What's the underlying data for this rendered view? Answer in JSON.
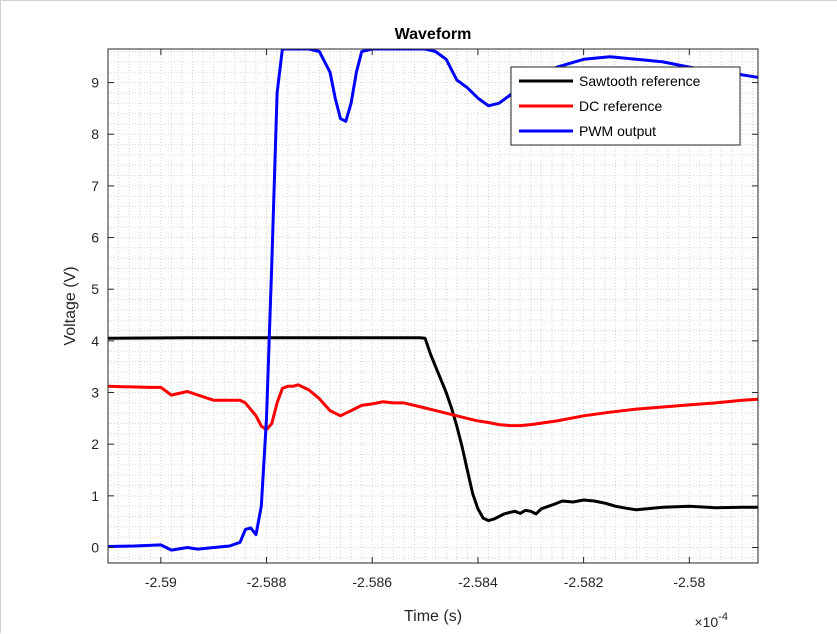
{
  "chart_data": {
    "type": "line",
    "title": "Waveform",
    "xlabel": "Time (s)",
    "ylabel": "Voltage (V)",
    "x_multiplier": "×10",
    "x_multiplier_exp": "-4",
    "xlim": [
      -2.591,
      -2.5787
    ],
    "ylim": [
      -0.3,
      9.65
    ],
    "x_ticks": [
      -2.59,
      -2.588,
      -2.586,
      -2.584,
      -2.582,
      -2.58
    ],
    "x_tick_labels": [
      "-2.59",
      "-2.588",
      "-2.586",
      "-2.584",
      "-2.582",
      "-2.58"
    ],
    "y_ticks": [
      0,
      1,
      2,
      3,
      4,
      5,
      6,
      7,
      8,
      9
    ],
    "y_tick_labels": [
      "0",
      "1",
      "2",
      "3",
      "4",
      "5",
      "6",
      "7",
      "8",
      "9"
    ],
    "grid": "minor dotted",
    "legend_position": "top-right",
    "series": [
      {
        "name": "Sawtooth reference",
        "color": "#000000",
        "x": [
          -2.591,
          -2.5895,
          -2.588,
          -2.587,
          -2.586,
          -2.5851,
          -2.585,
          -2.5849,
          -2.5848,
          -2.5847,
          -2.5846,
          -2.5845,
          -2.5844,
          -2.5843,
          -2.5842,
          -2.5841,
          -2.584,
          -2.5839,
          -2.5838,
          -2.5837,
          -2.5836,
          -2.5835,
          -2.5834,
          -2.5833,
          -2.5832,
          -2.5831,
          -2.583,
          -2.5829,
          -2.5828,
          -2.5826,
          -2.5824,
          -2.5822,
          -2.582,
          -2.5818,
          -2.5816,
          -2.5814,
          -2.5812,
          -2.581,
          -2.5805,
          -2.58,
          -2.5795,
          -2.579,
          -2.5787
        ],
        "y": [
          4.05,
          4.06,
          4.06,
          4.06,
          4.06,
          4.06,
          4.05,
          3.75,
          3.5,
          3.25,
          3.0,
          2.7,
          2.35,
          1.95,
          1.5,
          1.05,
          0.75,
          0.57,
          0.52,
          0.55,
          0.6,
          0.65,
          0.68,
          0.7,
          0.66,
          0.72,
          0.7,
          0.65,
          0.75,
          0.82,
          0.9,
          0.88,
          0.92,
          0.9,
          0.86,
          0.8,
          0.76,
          0.73,
          0.78,
          0.8,
          0.77,
          0.78,
          0.78
        ]
      },
      {
        "name": "DC reference",
        "color": "#ff0000",
        "x": [
          -2.591,
          -2.5902,
          -2.59,
          -2.5898,
          -2.5895,
          -2.589,
          -2.5885,
          -2.5884,
          -2.5882,
          -2.5881,
          -2.588,
          -2.5879,
          -2.5878,
          -2.5877,
          -2.5876,
          -2.5875,
          -2.5874,
          -2.5872,
          -2.587,
          -2.5868,
          -2.5866,
          -2.5865,
          -2.5864,
          -2.5862,
          -2.586,
          -2.5858,
          -2.5856,
          -2.5854,
          -2.5852,
          -2.585,
          -2.5848,
          -2.5846,
          -2.5844,
          -2.5842,
          -2.584,
          -2.5838,
          -2.5836,
          -2.5834,
          -2.5832,
          -2.583,
          -2.5825,
          -2.582,
          -2.5815,
          -2.581,
          -2.5805,
          -2.58,
          -2.5795,
          -2.579,
          -2.5787
        ],
        "y": [
          3.12,
          3.1,
          3.1,
          2.95,
          3.02,
          2.85,
          2.85,
          2.8,
          2.55,
          2.35,
          2.28,
          2.4,
          2.8,
          3.08,
          3.12,
          3.12,
          3.15,
          3.05,
          2.88,
          2.65,
          2.55,
          2.6,
          2.65,
          2.75,
          2.78,
          2.82,
          2.8,
          2.8,
          2.75,
          2.7,
          2.65,
          2.6,
          2.55,
          2.5,
          2.45,
          2.42,
          2.38,
          2.36,
          2.36,
          2.38,
          2.45,
          2.55,
          2.62,
          2.68,
          2.72,
          2.76,
          2.8,
          2.85,
          2.87
        ]
      },
      {
        "name": "PWM output",
        "color": "#0000ff",
        "x": [
          -2.591,
          -2.5905,
          -2.59,
          -2.5898,
          -2.5895,
          -2.5893,
          -2.589,
          -2.5887,
          -2.5885,
          -2.5884,
          -2.5883,
          -2.5882,
          -2.5881,
          -2.588,
          -2.5879,
          -2.5878,
          -2.5877,
          -2.5876,
          -2.5874,
          -2.5872,
          -2.587,
          -2.5868,
          -2.5867,
          -2.5866,
          -2.5865,
          -2.5864,
          -2.5863,
          -2.5862,
          -2.586,
          -2.5855,
          -2.5852,
          -2.585,
          -2.5848,
          -2.5846,
          -2.5845,
          -2.5844,
          -2.5842,
          -2.584,
          -2.5838,
          -2.5836,
          -2.5834,
          -2.5832,
          -2.583,
          -2.5825,
          -2.582,
          -2.5815,
          -2.581,
          -2.5805,
          -2.58,
          -2.5795,
          -2.579,
          -2.5787
        ],
        "y": [
          0.02,
          0.03,
          0.05,
          -0.05,
          0.0,
          -0.03,
          0.0,
          0.03,
          0.1,
          0.35,
          0.38,
          0.25,
          0.8,
          2.5,
          5.5,
          8.8,
          9.65,
          9.65,
          9.65,
          9.65,
          9.6,
          9.2,
          8.7,
          8.3,
          8.25,
          8.6,
          9.2,
          9.6,
          9.65,
          9.65,
          9.65,
          9.65,
          9.6,
          9.45,
          9.25,
          9.05,
          8.9,
          8.7,
          8.55,
          8.6,
          8.75,
          8.95,
          9.1,
          9.3,
          9.45,
          9.5,
          9.45,
          9.4,
          9.3,
          9.2,
          9.15,
          9.1
        ]
      }
    ]
  }
}
